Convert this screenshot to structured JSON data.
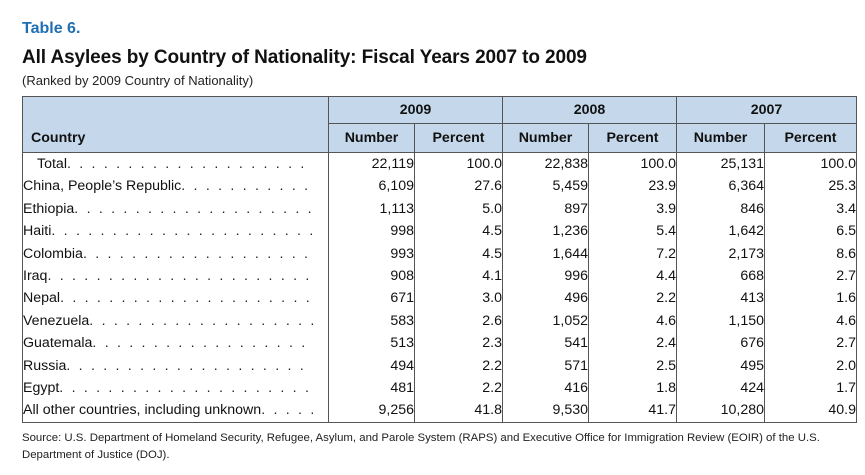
{
  "table_label": "Table 6.",
  "title": "All Asylees by Country of Nationality: Fiscal Years 2007 to 2009",
  "subtitle": "(Ranked by 2009 Country of Nationality)",
  "header": {
    "country_col": "Country",
    "years": [
      "2009",
      "2008",
      "2007"
    ],
    "number_label": "Number",
    "percent_label": "Percent"
  },
  "rows": [
    {
      "country": "Total",
      "y2009": {
        "number": "22,119",
        "percent": "100.0"
      },
      "y2008": {
        "number": "22,838",
        "percent": "100.0"
      },
      "y2007": {
        "number": "25,131",
        "percent": "100.0"
      }
    },
    {
      "country": "China, People’s Republic",
      "y2009": {
        "number": "6,109",
        "percent": "27.6"
      },
      "y2008": {
        "number": "5,459",
        "percent": "23.9"
      },
      "y2007": {
        "number": "6,364",
        "percent": "25.3"
      }
    },
    {
      "country": "Ethiopia",
      "y2009": {
        "number": "1,113",
        "percent": "5.0"
      },
      "y2008": {
        "number": "897",
        "percent": "3.9"
      },
      "y2007": {
        "number": "846",
        "percent": "3.4"
      }
    },
    {
      "country": "Haiti",
      "y2009": {
        "number": "998",
        "percent": "4.5"
      },
      "y2008": {
        "number": "1,236",
        "percent": "5.4"
      },
      "y2007": {
        "number": "1,642",
        "percent": "6.5"
      }
    },
    {
      "country": "Colombia",
      "y2009": {
        "number": "993",
        "percent": "4.5"
      },
      "y2008": {
        "number": "1,644",
        "percent": "7.2"
      },
      "y2007": {
        "number": "2,173",
        "percent": "8.6"
      }
    },
    {
      "country": "Iraq",
      "y2009": {
        "number": "908",
        "percent": "4.1"
      },
      "y2008": {
        "number": "996",
        "percent": "4.4"
      },
      "y2007": {
        "number": "668",
        "percent": "2.7"
      }
    },
    {
      "country": "Nepal",
      "y2009": {
        "number": "671",
        "percent": "3.0"
      },
      "y2008": {
        "number": "496",
        "percent": "2.2"
      },
      "y2007": {
        "number": "413",
        "percent": "1.6"
      }
    },
    {
      "country": "Venezuela",
      "y2009": {
        "number": "583",
        "percent": "2.6"
      },
      "y2008": {
        "number": "1,052",
        "percent": "4.6"
      },
      "y2007": {
        "number": "1,150",
        "percent": "4.6"
      }
    },
    {
      "country": "Guatemala",
      "y2009": {
        "number": "513",
        "percent": "2.3"
      },
      "y2008": {
        "number": "541",
        "percent": "2.4"
      },
      "y2007": {
        "number": "676",
        "percent": "2.7"
      }
    },
    {
      "country": "Russia",
      "y2009": {
        "number": "494",
        "percent": "2.2"
      },
      "y2008": {
        "number": "571",
        "percent": "2.5"
      },
      "y2007": {
        "number": "495",
        "percent": "2.0"
      }
    },
    {
      "country": "Egypt",
      "y2009": {
        "number": "481",
        "percent": "2.2"
      },
      "y2008": {
        "number": "416",
        "percent": "1.8"
      },
      "y2007": {
        "number": "424",
        "percent": "1.7"
      }
    },
    {
      "country": "All other countries, including unknown",
      "y2009": {
        "number": "9,256",
        "percent": "41.8"
      },
      "y2008": {
        "number": "9,530",
        "percent": "41.7"
      },
      "y2007": {
        "number": "10,280",
        "percent": "40.9"
      }
    }
  ],
  "source": "Source: U.S. Department of Homeland Security, Refugee, Asylum, and Parole System (RAPS) and Executive Office for Immigration Review (EOIR) of the U.S. Department of Justice (DOJ).",
  "colors": {
    "table_label": "#1f6fb5",
    "header_bg": "#c5d8eb"
  }
}
